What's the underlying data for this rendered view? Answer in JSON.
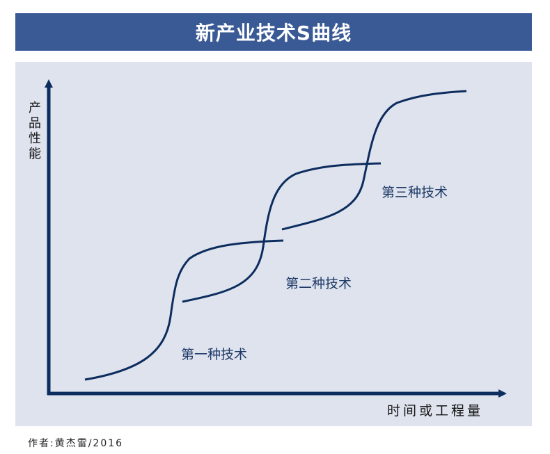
{
  "title": "新产业技术S曲线",
  "axes": {
    "y_label": "产品性能",
    "x_label": "时间或工程量"
  },
  "curves": [
    {
      "label": "第一种技术"
    },
    {
      "label": "第二种技术"
    },
    {
      "label": "第三种技术"
    }
  ],
  "colors": {
    "title_bg": "#3a5a96",
    "panel_bg": "#dfe3ee",
    "curve": "#0d2d5e"
  },
  "footer": {
    "author": "作者:黄杰雷/2016"
  }
}
